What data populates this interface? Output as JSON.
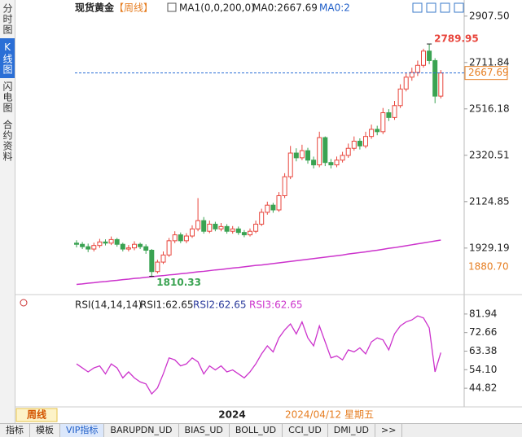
{
  "sidebar": [
    "分时图",
    "K线图",
    "闪电图",
    "合约资料"
  ],
  "chart_data": [
    {
      "type": "candlestick",
      "symbol": "现货黄金",
      "period": "【周线】",
      "ma_params": "MA1(0,0,200,0)",
      "ma_value": "MA0:2667.69",
      "ma_extra": "MA0:2",
      "open": [
        1950,
        1945,
        1935,
        1925,
        1940,
        1955,
        1950,
        1965,
        1945,
        1925,
        1930,
        1945,
        1935,
        1920,
        1830,
        1870,
        1900,
        1960,
        1985,
        1960,
        1980,
        2010,
        2045,
        2000,
        2030,
        2010,
        2020,
        2000,
        2010,
        1995,
        1985,
        2000,
        2030,
        2080,
        2110,
        2090,
        2150,
        2230,
        2330,
        2310,
        2340,
        2300,
        2280,
        2395,
        2290,
        2280,
        2300,
        2320,
        2350,
        2380,
        2360,
        2400,
        2430,
        2420,
        2500,
        2480,
        2530,
        2600,
        2650,
        2670,
        2700,
        2760,
        2720,
        2570
      ],
      "high": [
        1962,
        1955,
        1948,
        1952,
        1968,
        1966,
        1978,
        1972,
        1952,
        1942,
        1958,
        1952,
        1945,
        1925,
        1880,
        1915,
        1972,
        2000,
        1995,
        1992,
        2025,
        2140,
        2060,
        2045,
        2040,
        2035,
        2030,
        2022,
        2020,
        2005,
        2012,
        2045,
        2095,
        2125,
        2120,
        2165,
        2245,
        2360,
        2350,
        2365,
        2352,
        2315,
        2420,
        2400,
        2305,
        2315,
        2335,
        2370,
        2400,
        2392,
        2420,
        2450,
        2445,
        2520,
        2515,
        2550,
        2620,
        2670,
        2690,
        2720,
        2770,
        2789.95,
        2730,
        2680
      ],
      "low": [
        1932,
        1925,
        1912,
        1915,
        1930,
        1940,
        1942,
        1935,
        1915,
        1915,
        1920,
        1925,
        1905,
        1810.33,
        1822,
        1862,
        1892,
        1950,
        1950,
        1950,
        1972,
        2000,
        1990,
        1992,
        2000,
        2000,
        1990,
        1990,
        1985,
        1975,
        1978,
        1992,
        2022,
        2070,
        2078,
        2082,
        2140,
        2220,
        2295,
        2300,
        2285,
        2265,
        2270,
        2275,
        2265,
        2270,
        2290,
        2310,
        2340,
        2345,
        2350,
        2390,
        2405,
        2410,
        2465,
        2470,
        2520,
        2590,
        2635,
        2655,
        2690,
        2705,
        2540,
        2560
      ],
      "close": [
        1945,
        1935,
        1925,
        1940,
        1955,
        1950,
        1965,
        1945,
        1925,
        1930,
        1945,
        1935,
        1920,
        1830,
        1870,
        1900,
        1960,
        1985,
        1960,
        1980,
        2010,
        2045,
        2000,
        2030,
        2010,
        2020,
        2000,
        2010,
        1995,
        1985,
        2000,
        2030,
        2080,
        2110,
        2090,
        2150,
        2230,
        2330,
        2310,
        2340,
        2300,
        2280,
        2395,
        2290,
        2280,
        2300,
        2320,
        2350,
        2380,
        2360,
        2400,
        2430,
        2420,
        2500,
        2480,
        2530,
        2600,
        2650,
        2670,
        2700,
        2760,
        2720,
        2570,
        2667.69
      ],
      "up_color": "#e8453c",
      "down_color": "#3aa352",
      "ma": {
        "color": "#cc33cc",
        "values": [
          1776,
          1778,
          1781,
          1783,
          1786,
          1788,
          1791,
          1793,
          1796,
          1798,
          1801,
          1803,
          1806,
          1808,
          1811,
          1813,
          1816,
          1818,
          1821,
          1823,
          1826,
          1829,
          1831,
          1834,
          1837,
          1839,
          1842,
          1845,
          1847,
          1850,
          1853,
          1856,
          1858,
          1861,
          1864,
          1867,
          1870,
          1873,
          1876,
          1879,
          1882,
          1885,
          1888,
          1891,
          1894,
          1897,
          1900,
          1904,
          1907,
          1910,
          1913,
          1917,
          1920,
          1924,
          1928,
          1931,
          1935,
          1939,
          1943,
          1947,
          1951,
          1955,
          1959,
          1963
        ]
      },
      "ylim": [
        1757,
        2948
      ],
      "yticks": [
        {
          "value": 2907.5,
          "label": "2907.50"
        },
        2711.84,
        2516.18,
        2320.51,
        2124.85,
        1929.19
      ],
      "high_label": "2789.95",
      "low_label": "1810.33",
      "last_label": "2667.69",
      "ma_label": "1880.70"
    },
    {
      "type": "line",
      "title": "RSI(14,14,14)",
      "legend": [
        "RSI1:62.65",
        "RSI2:62.65",
        "RSI3:62.65"
      ],
      "color": "#cc33cc",
      "values": [
        57,
        55,
        53,
        55,
        56,
        52,
        57,
        55,
        50,
        53,
        50,
        48,
        47,
        42,
        45,
        52,
        60,
        59,
        56,
        57,
        60,
        58,
        52,
        56,
        54,
        56,
        53,
        54,
        52,
        50,
        53,
        57,
        62,
        66,
        63,
        70,
        74,
        77,
        72,
        78,
        70,
        66,
        76,
        68,
        60,
        61,
        59,
        64,
        63,
        65,
        62,
        68,
        70,
        69,
        64,
        72,
        76,
        78,
        79,
        81,
        80,
        75,
        53,
        62.65
      ],
      "ylim": [
        35.5,
        88.4
      ],
      "yticks": [
        81.94,
        72.66,
        63.38,
        {
          "value": 54.1,
          "label": "54.10"
        },
        44.82
      ]
    }
  ],
  "footer": {
    "period_tag": "周线",
    "year": "2024",
    "cursor_date": "2024/04/12 星期五"
  },
  "tabs": [
    "指标",
    "模板",
    "VIP指标",
    "BARUPDN_UD",
    "BIAS_UD",
    "BOLL_UD",
    "CCI_UD",
    "DMI_UD",
    ">>"
  ]
}
